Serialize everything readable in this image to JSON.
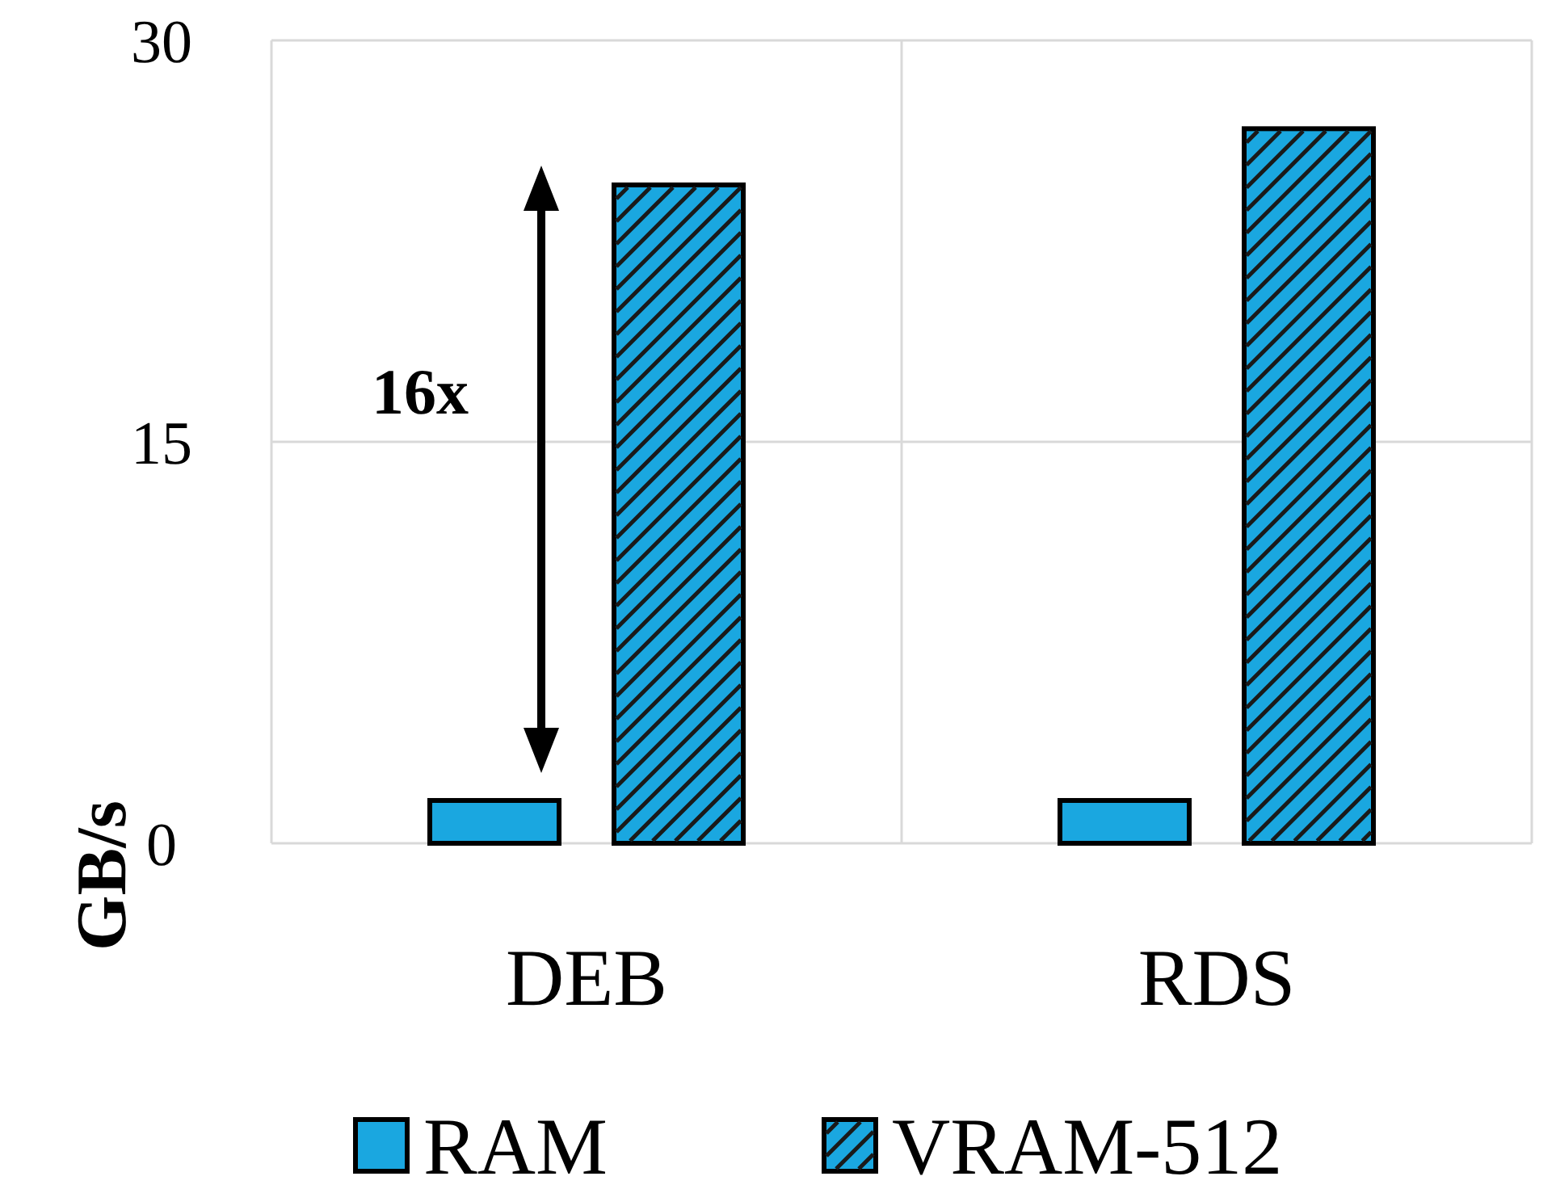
{
  "chart_data": {
    "type": "bar",
    "ylabel": "GB/s",
    "categories": [
      "DEB",
      "RDS"
    ],
    "series": [
      {
        "name": "RAM",
        "color": "#1aa7e0",
        "values": [
          1.6,
          1.6
        ]
      },
      {
        "name": "VRAM-512",
        "color": "#1aa7e0",
        "values": [
          24.6,
          26.7
        ]
      }
    ],
    "ylim": [
      0,
      30
    ],
    "yticks": [
      0,
      15,
      30
    ],
    "grid": true,
    "legend": "bottom",
    "annotations": [
      "16x"
    ]
  }
}
